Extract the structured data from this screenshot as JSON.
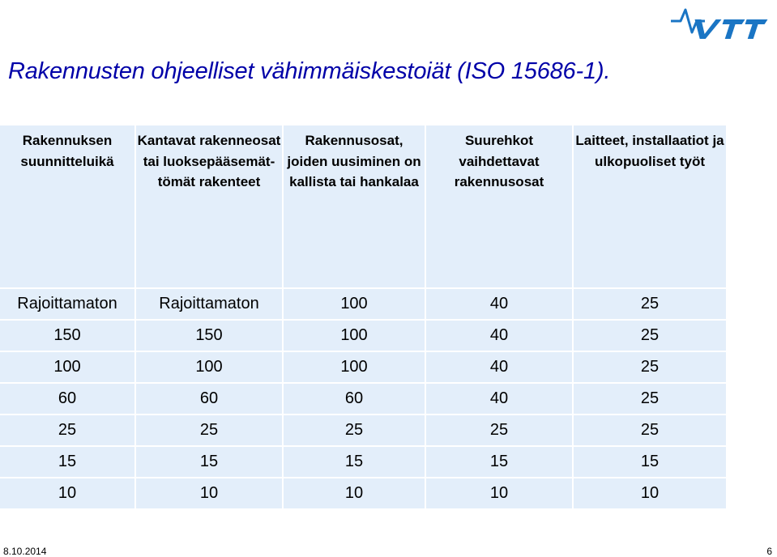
{
  "logo": {
    "text": "VTT",
    "color": "#1a75c4"
  },
  "slide": {
    "title": "Rakennusten ohjeelliset vähimmäiskestoiät (ISO 15686-1).",
    "title_color": "#0000a8"
  },
  "table": {
    "headers": [
      "Rakennuksen suunnitteluikä",
      "Kantavat rakenneosat tai luoksepääsemät-tömät rakenteet",
      "Rakennusosat, joiden uusiminen on kallista tai hankalaa",
      "Suurehkot vaihdettavat rakennusosat",
      "Laitteet, installaatiot ja ulkopuoliset työt"
    ],
    "rows": [
      [
        "Rajoittamaton",
        "Rajoittamaton",
        "100",
        "40",
        "25"
      ],
      [
        "150",
        "150",
        "100",
        "40",
        "25"
      ],
      [
        "100",
        "100",
        "100",
        "40",
        "25"
      ],
      [
        "60",
        "60",
        "60",
        "40",
        "25"
      ],
      [
        "25",
        "25",
        "25",
        "25",
        "25"
      ],
      [
        "15",
        "15",
        "15",
        "15",
        "15"
      ],
      [
        "10",
        "10",
        "10",
        "10",
        "10"
      ]
    ],
    "cell_color": "#e3eefa"
  },
  "footer": {
    "date": "8.10.2014",
    "page": "6"
  }
}
